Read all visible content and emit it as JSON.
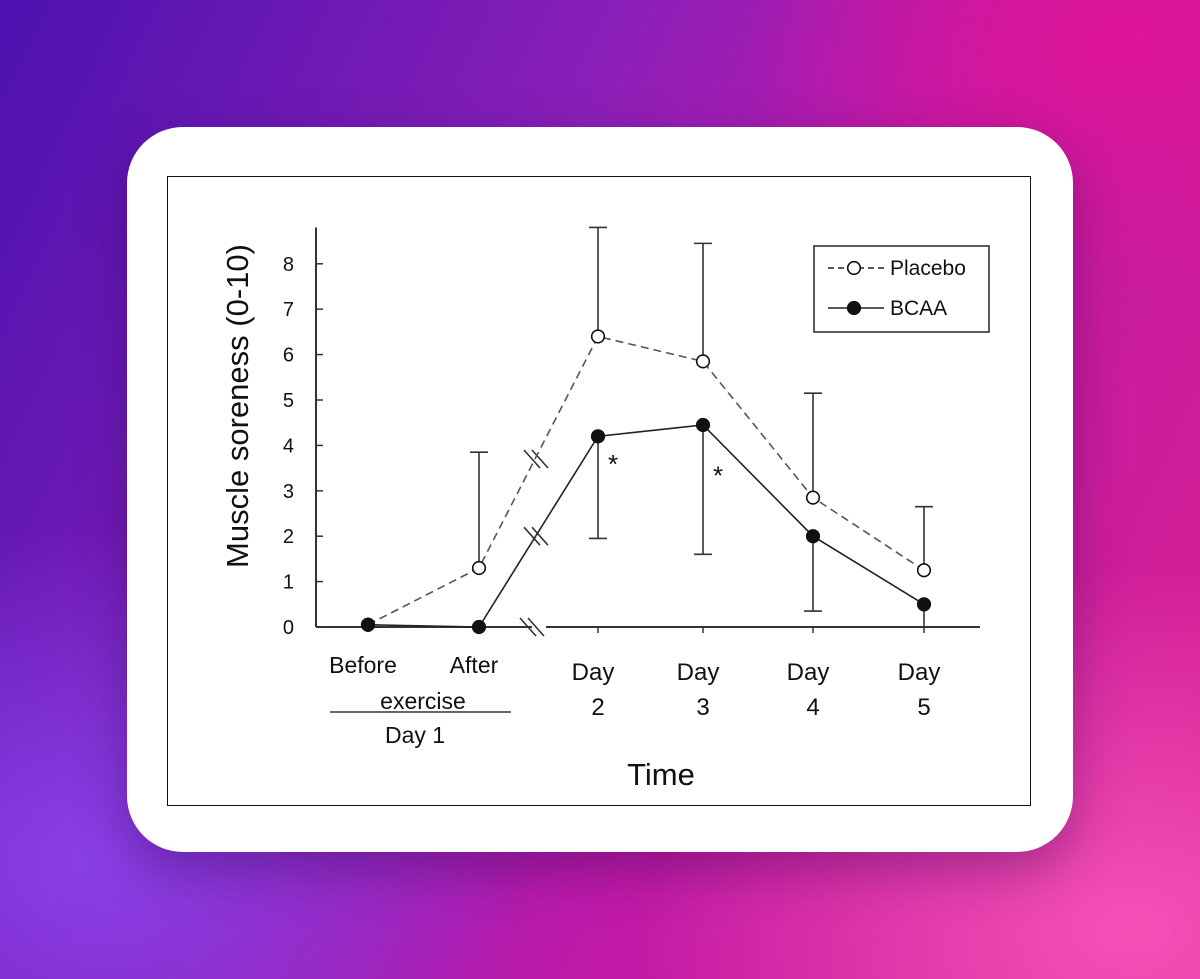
{
  "chart_data": {
    "type": "line",
    "ylabel": "Muscle soreness (0-10)",
    "xlabel": "Time",
    "ylim": [
      0,
      8.8
    ],
    "yticks": [
      0,
      1,
      2,
      3,
      4,
      5,
      6,
      7,
      8
    ],
    "categories": [
      {
        "line1": "Before",
        "line2": ""
      },
      {
        "line1": "After",
        "line2": ""
      },
      {
        "line1": "Day",
        "line2": "2"
      },
      {
        "line1": "Day",
        "line2": "3"
      },
      {
        "line1": "Day",
        "line2": "4"
      },
      {
        "line1": "Day",
        "line2": "5"
      }
    ],
    "group_label": {
      "text": "exercise",
      "sublabel": "Day 1",
      "spans": [
        0,
        1
      ]
    },
    "axis_break_after": 1,
    "legend": {
      "position": "top-right"
    },
    "series": [
      {
        "name": "Placebo",
        "marker": "open-circle",
        "line": "dashed",
        "values": [
          0.05,
          1.3,
          6.4,
          5.85,
          2.85,
          1.25
        ],
        "error_upper": [
          null,
          3.85,
          8.8,
          8.45,
          5.15,
          2.65
        ]
      },
      {
        "name": "BCAA",
        "marker": "filled-circle",
        "line": "solid",
        "values": [
          0.05,
          0.0,
          4.2,
          4.45,
          2.0,
          0.5
        ],
        "error_lower": [
          null,
          null,
          1.95,
          1.6,
          0.35,
          0.0
        ]
      }
    ],
    "annotations": [
      {
        "text": "*",
        "category": 2,
        "y": 3.7
      },
      {
        "text": "*",
        "category": 3,
        "y": 3.45
      }
    ]
  }
}
